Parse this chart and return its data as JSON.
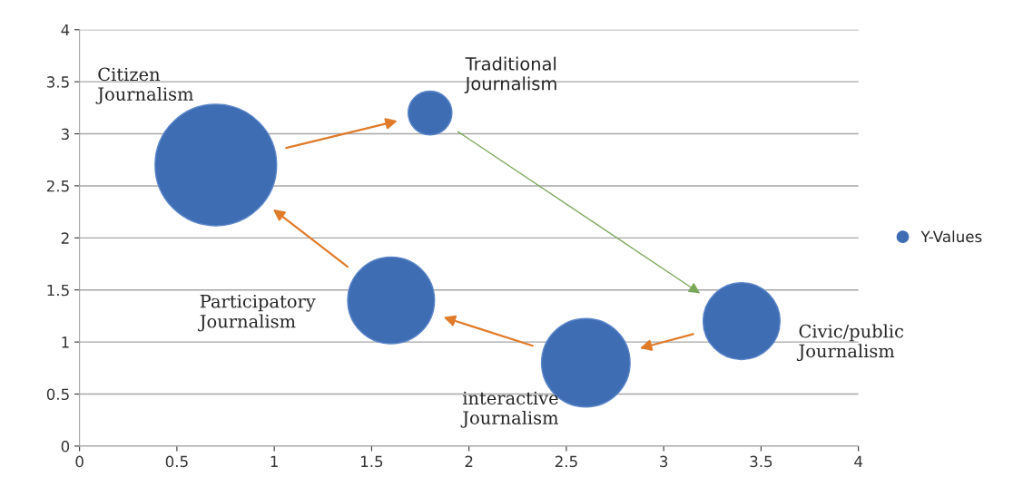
{
  "chart_data": {
    "type": "bubble",
    "x": [
      0.7,
      1.8,
      3.4,
      2.6,
      1.6
    ],
    "series": [
      {
        "name": "Y-Values",
        "color": "#3f6db3",
        "values": [
          2.7,
          3.2,
          1.2,
          0.8,
          1.4
        ],
        "sizes": [
          1,
          0.13,
          0.4,
          0.53,
          0.51
        ]
      }
    ],
    "xlim": [
      0,
      4
    ],
    "xticks": [
      0,
      0.5,
      1,
      1.5,
      2,
      2.5,
      3,
      3.5,
      4
    ],
    "ylim": [
      0,
      4
    ],
    "yticks": [
      0,
      0.5,
      1,
      1.5,
      2,
      2.5,
      3,
      3.5,
      4
    ],
    "grid": "y",
    "legend": "right",
    "annotations": [
      "Citizen\nJournalism",
      "Traditional\nJournalism",
      "Civic/public\nJournalism",
      "interactive\nJournalism",
      "Participatory\nJournalism"
    ]
  }
}
